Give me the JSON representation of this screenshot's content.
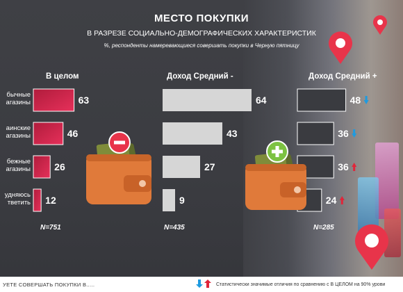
{
  "header": {
    "title": "МЕСТО ПОКУПКИ",
    "subtitle": "В РАЗРЕЗЕ СОЦИАЛЬНО-ДЕМОГРАФИЧЕСКИХ ХАРАКТЕРИСТИК",
    "note": "%,  респонденты намеревающиеся совершать покупки в Черную пятницу"
  },
  "categories": [
    [
      "бычные",
      "агазины"
    ],
    [
      "аинские",
      "агазины"
    ],
    [
      "бежные",
      "агазины"
    ],
    [
      "удняюсь",
      "тветить"
    ]
  ],
  "chart_data": {
    "type": "bar",
    "orientation": "horizontal",
    "title": "МЕСТО ПОКУПКИ",
    "subtitle": "В РАЗРЕЗЕ СОЦИАЛЬНО-ДЕМОГРАФИЧЕСКИХ ХАРАКТЕРИСТИК",
    "categories": [
      "бычные агазины",
      "аинские агазины",
      "бежные агазины",
      "удняюсь тветить"
    ],
    "xlim": [
      0,
      100
    ],
    "series": [
      {
        "name": "В целом",
        "values": [
          63,
          46,
          26,
          12
        ],
        "n": "N=751",
        "color": "#c8264a"
      },
      {
        "name": "Доход Средний -",
        "values": [
          64,
          43,
          27,
          9
        ],
        "n": "N=435",
        "color": "#d6d6d6"
      },
      {
        "name": "Доход Средний +",
        "values": [
          48,
          36,
          36,
          24
        ],
        "n": "N=285",
        "color": "#3a3b40",
        "markers": [
          "down",
          "down",
          "up",
          "up"
        ]
      }
    ]
  },
  "footer": {
    "left": "УЕТЕ СОВЕРШАТЬ ПОКУПКИ В.....",
    "right": "Статистически  значимые отличия по сравнению с В ЦЕЛОМ на 90% урови"
  },
  "colors": {
    "up": "#e0263a",
    "down": "#1e9be0",
    "minus_badge": "#e8344a",
    "plus_badge": "#7cc242",
    "wallet": "#e07a3a",
    "pin": "#e8344a"
  },
  "icons": [
    "wallet-minus-icon",
    "wallet-plus-icon",
    "map-pin-icon",
    "arrow-up-icon",
    "arrow-down-icon"
  ]
}
